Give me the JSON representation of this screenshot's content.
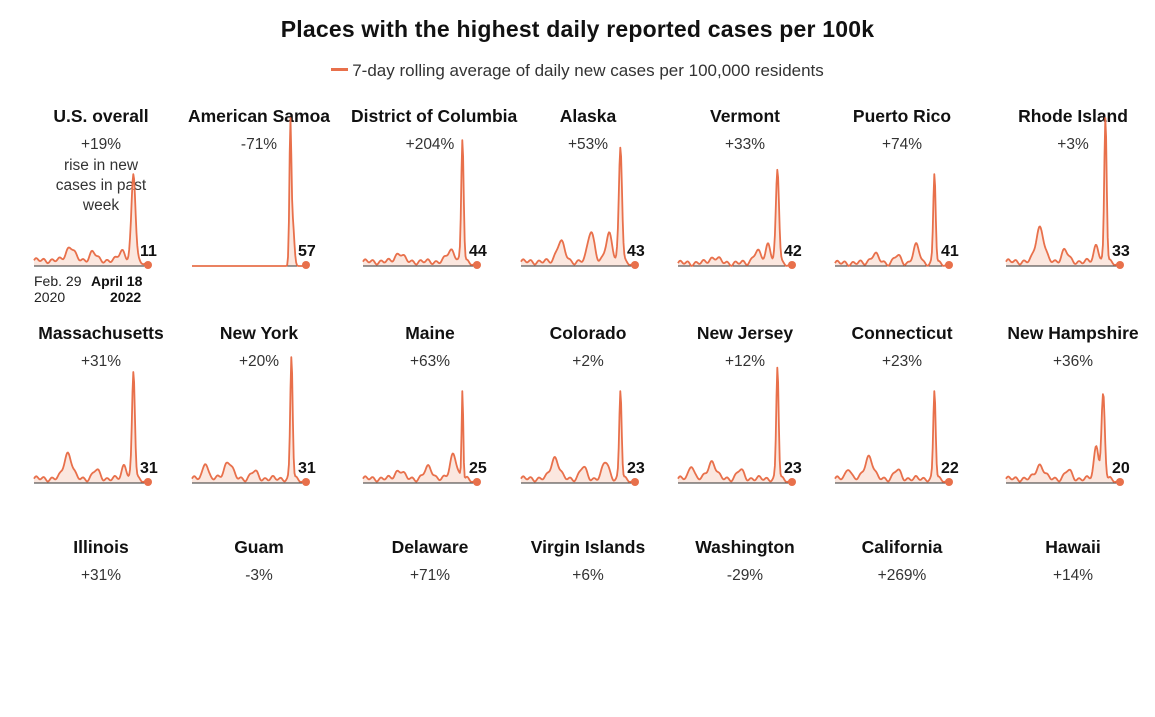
{
  "title": "Places with the highest daily reported cases per 100k",
  "legend": "7-day rolling average of daily new cases per 100,000 residents",
  "colors": {
    "line": "#e8704b",
    "fill": "#f7d3c4",
    "baseline": "#333333"
  },
  "us_note": "rise in new cases in past week",
  "date_labels": {
    "start": "Feb. 29",
    "start_year": "2020",
    "end": "April 18",
    "end_year": "2022"
  },
  "chart_data": {
    "type": "line",
    "title": "Places with the highest daily reported cases per 100k",
    "series_label": "7-day rolling average of daily new cases per 100,000 residents",
    "x_range": [
      "Feb. 29 2020",
      "April 18 2022"
    ],
    "panels": [
      {
        "name": "U.S. overall",
        "change": "+19%",
        "latest": 11
      },
      {
        "name": "American Samoa",
        "change": "-71%",
        "latest": 57
      },
      {
        "name": "District of Columbia",
        "change": "+204%",
        "latest": 44
      },
      {
        "name": "Alaska",
        "change": "+53%",
        "latest": 43
      },
      {
        "name": "Vermont",
        "change": "+33%",
        "latest": 42
      },
      {
        "name": "Puerto Rico",
        "change": "+74%",
        "latest": 41
      },
      {
        "name": "Rhode Island",
        "change": "+3%",
        "latest": 33
      },
      {
        "name": "Massachusetts",
        "change": "+31%",
        "latest": 31
      },
      {
        "name": "New York",
        "change": "+20%",
        "latest": 31
      },
      {
        "name": "Maine",
        "change": "+63%",
        "latest": 25
      },
      {
        "name": "Colorado",
        "change": "+2%",
        "latest": 23
      },
      {
        "name": "New Jersey",
        "change": "+12%",
        "latest": 23
      },
      {
        "name": "Connecticut",
        "change": "+23%",
        "latest": 22
      },
      {
        "name": "New Hampshire",
        "change": "+36%",
        "latest": 20
      },
      {
        "name": "Illinois",
        "change": "+31%",
        "latest": null
      },
      {
        "name": "Guam",
        "change": "-3%",
        "latest": null
      },
      {
        "name": "Delaware",
        "change": "+71%",
        "latest": null
      },
      {
        "name": "Virgin Islands",
        "change": "+6%",
        "latest": null
      },
      {
        "name": "Washington",
        "change": "-29%",
        "latest": null
      },
      {
        "name": "California",
        "change": "+269%",
        "latest": null
      },
      {
        "name": "Hawaii",
        "change": "+14%",
        "latest": null
      }
    ]
  }
}
